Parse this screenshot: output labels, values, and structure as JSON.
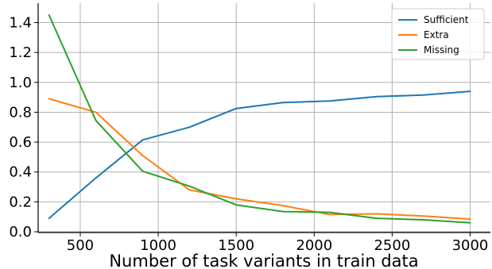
{
  "chart_data": {
    "type": "line",
    "title": "",
    "xlabel": "Number of task variants in train data",
    "ylabel": "",
    "xlim": [
      230,
      3130
    ],
    "ylim": [
      -0.005,
      1.53
    ],
    "x_ticks": [
      500,
      1000,
      1500,
      2000,
      2500,
      3000
    ],
    "x_tick_labels": [
      "500",
      "1000",
      "1500",
      "2000",
      "2500",
      "3000"
    ],
    "y_ticks": [
      0.0,
      0.2,
      0.4,
      0.6,
      0.8,
      1.0,
      1.2,
      1.4
    ],
    "y_tick_labels": [
      "0.0",
      "0.2",
      "0.4",
      "0.6",
      "0.8",
      "1.0",
      "1.2",
      "1.4"
    ],
    "grid": true,
    "legend_position": "top-right",
    "x": [
      300,
      600,
      900,
      1200,
      1500,
      1800,
      2100,
      2400,
      2700,
      3000
    ],
    "series": [
      {
        "name": "Sufficient",
        "color": "#1f77b4",
        "values": [
          0.09,
          0.36,
          0.615,
          0.7,
          0.825,
          0.865,
          0.875,
          0.905,
          0.915,
          0.94
        ]
      },
      {
        "name": "Extra",
        "color": "#ff7f0e",
        "values": [
          0.89,
          0.8,
          0.51,
          0.28,
          0.22,
          0.175,
          0.115,
          0.12,
          0.105,
          0.085
        ]
      },
      {
        "name": "Missing",
        "color": "#2ca02c",
        "values": [
          1.45,
          0.745,
          0.405,
          0.305,
          0.18,
          0.135,
          0.13,
          0.09,
          0.08,
          0.06
        ]
      }
    ]
  }
}
